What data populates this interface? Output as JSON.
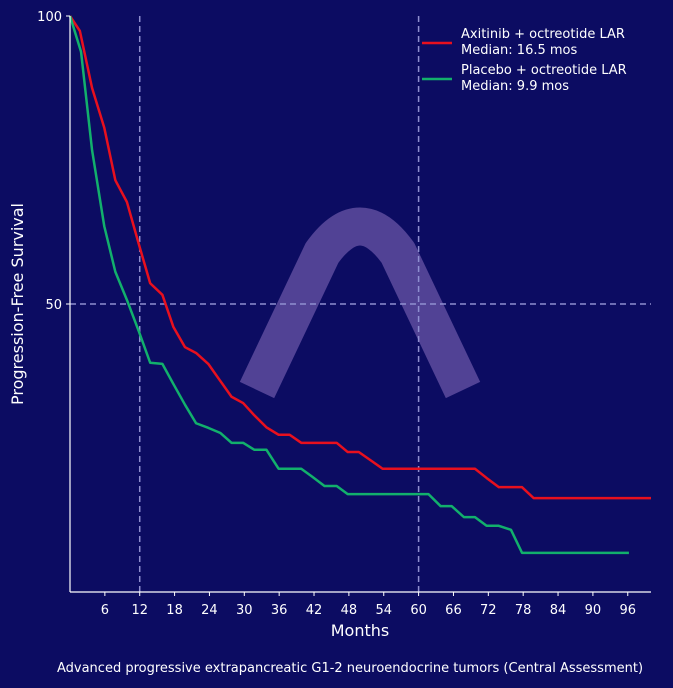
{
  "chart_data": {
    "type": "line",
    "title": "",
    "xlabel": "Months",
    "ylabel": "Progression-Free Survival",
    "caption": "Advanced progressive extrapancreatic G1-2 neuroendocrine tumors (Central Assessment)",
    "xlim": [
      0,
      100
    ],
    "ylim": [
      0,
      100
    ],
    "xticks": [
      6,
      12,
      18,
      24,
      30,
      36,
      42,
      48,
      54,
      60,
      66,
      72,
      78,
      84,
      90,
      96
    ],
    "yticks": [
      50,
      100
    ],
    "reference_lines": {
      "vertical": [
        12,
        60
      ],
      "horizontal": [
        50
      ]
    },
    "legend_position": "top-right",
    "series": [
      {
        "name": "Axitinib + octreotide LAR",
        "median_label": "Median: 16.5 mos",
        "color": "#e8101e",
        "x": [
          0,
          1.7,
          3.8,
          5.9,
          7.8,
          9.8,
          11.9,
          13.8,
          15.9,
          17.8,
          19.8,
          21.7,
          23.8,
          25.9,
          27.8,
          29.8,
          31.7,
          33.8,
          35.9,
          37.8,
          39.8,
          45.9,
          47.8,
          49.7,
          51.7,
          53.8,
          69.7,
          71.7,
          73.8,
          77.8,
          79.8,
          100
        ],
        "y": [
          100,
          97.4,
          87.5,
          80.6,
          71.5,
          67.7,
          60.2,
          53.6,
          51.6,
          46,
          42.5,
          41.5,
          39.6,
          36.6,
          33.9,
          32.8,
          30.7,
          28.6,
          27.3,
          27.3,
          25.9,
          25.9,
          24.3,
          24.3,
          22.9,
          21.4,
          21.4,
          19.8,
          18.2,
          18.2,
          16.3,
          16.3
        ]
      },
      {
        "name": "Placebo + octreotide LAR",
        "median_label": "Median: 9.9 mos",
        "color": "#12b06c",
        "x": [
          0,
          1.9,
          3.8,
          5.9,
          7.8,
          9.8,
          11.9,
          13.8,
          15.9,
          17.8,
          19.8,
          21.7,
          23.8,
          25.9,
          27.8,
          29.8,
          31.7,
          33.8,
          35.9,
          39.8,
          41.7,
          43.8,
          45.9,
          47.8,
          61.7,
          63.8,
          65.7,
          67.8,
          69.7,
          71.7,
          73.8,
          75.9,
          77.8,
          96.2
        ],
        "y": [
          100,
          93.8,
          76.7,
          63.5,
          55.6,
          50.7,
          45.1,
          39.8,
          39.6,
          36.1,
          32.5,
          29.3,
          28.5,
          27.6,
          25.9,
          25.9,
          24.7,
          24.7,
          21.4,
          21.4,
          20,
          18.4,
          18.4,
          17,
          17,
          14.9,
          14.9,
          13,
          13,
          11.5,
          11.5,
          10.8,
          6.8,
          6.8
        ]
      }
    ],
    "watermark": "arch-logo"
  }
}
